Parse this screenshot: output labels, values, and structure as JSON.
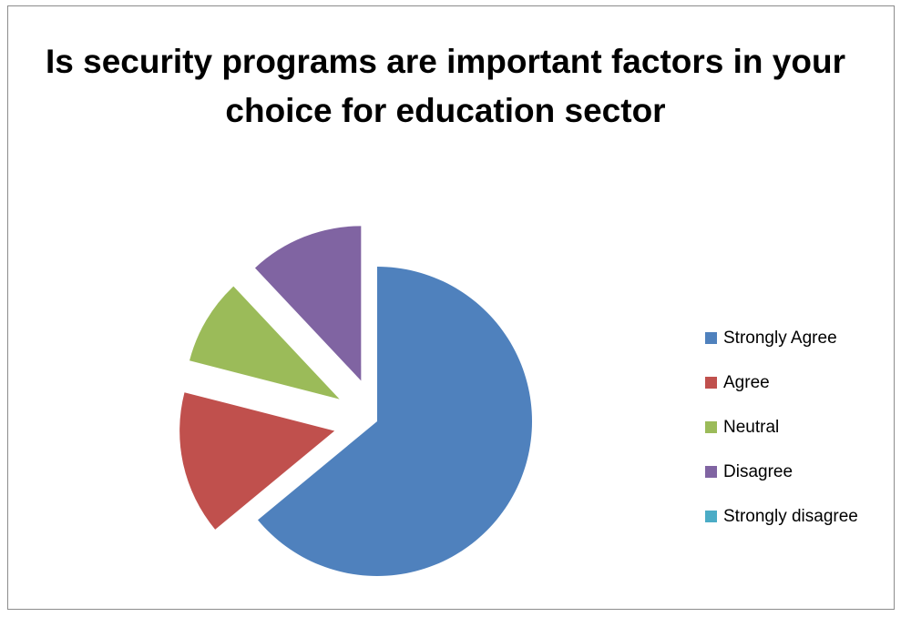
{
  "chart_data": {
    "type": "pie",
    "title": "Is security programs are important factors in your choice for education sector",
    "categories": [
      "Strongly Agree",
      "Agree",
      "Neutral",
      "Disagree",
      "Strongly disagree"
    ],
    "values": [
      64,
      15,
      9,
      12,
      0
    ],
    "colors": [
      "#4f81bd",
      "#c0504d",
      "#9bbb59",
      "#8064a2",
      "#4bacc6"
    ],
    "exploded": true,
    "legend_position": "right"
  }
}
